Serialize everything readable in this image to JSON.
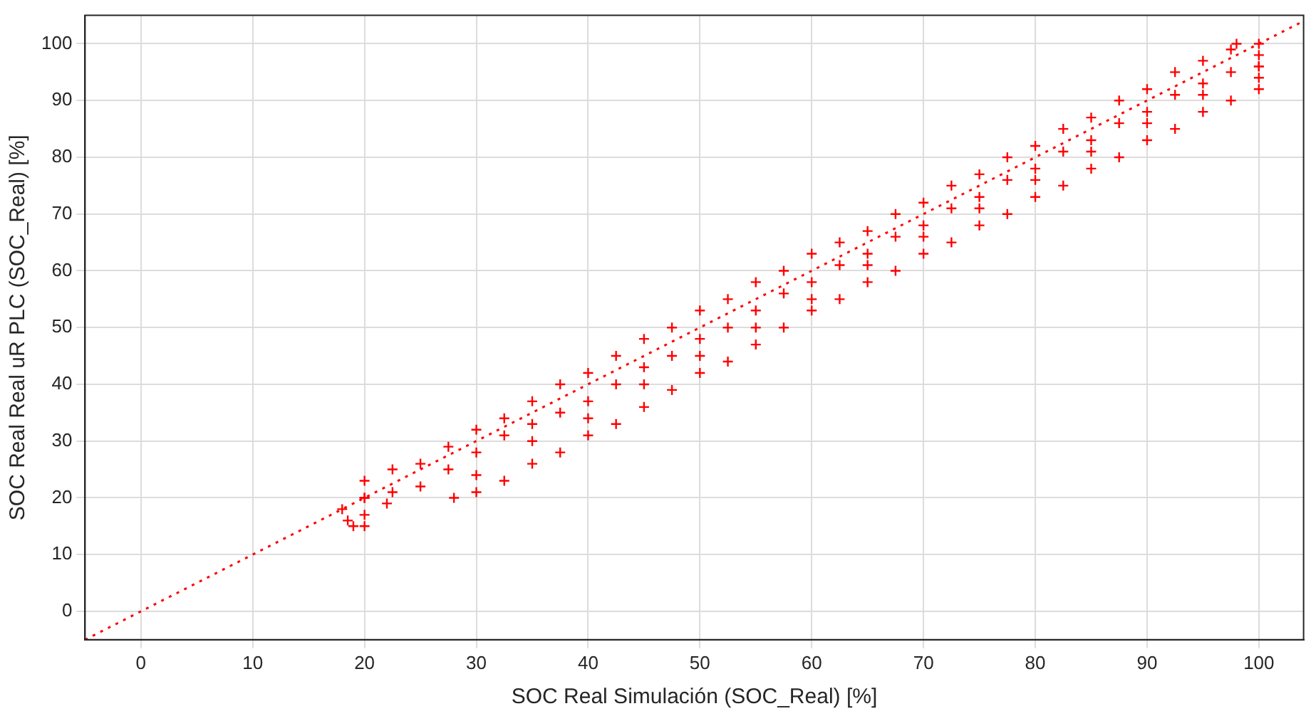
{
  "chart_data": {
    "type": "scatter",
    "xlabel": "SOC Real Simulación (SOC_Real) [%]",
    "ylabel": "SOC Real Real uR PLC (SOC_Real) [%]",
    "xlim": [
      -5,
      104
    ],
    "ylim": [
      -5,
      105
    ],
    "xticks": [
      0,
      10,
      20,
      30,
      40,
      50,
      60,
      70,
      80,
      90,
      100
    ],
    "yticks": [
      0,
      10,
      20,
      30,
      40,
      50,
      60,
      70,
      80,
      90,
      100
    ],
    "grid": true,
    "legend": false,
    "marker": "cross",
    "series": [
      {
        "color": "#ff0000",
        "x": [
          18,
          18.5,
          19,
          20,
          20,
          20,
          20,
          25,
          30,
          35,
          40,
          45,
          50,
          55,
          60,
          65,
          70,
          75,
          80,
          85,
          90,
          95,
          98,
          100,
          20,
          25,
          30,
          35,
          40,
          45,
          50,
          55,
          60,
          65,
          70,
          75,
          80,
          85,
          90,
          95,
          100,
          22,
          30,
          35,
          40,
          45,
          50,
          55,
          60,
          65,
          70,
          75,
          80,
          85,
          90,
          95,
          28,
          30,
          35,
          40,
          45,
          50,
          55,
          60,
          65,
          70,
          75,
          80,
          85,
          90,
          95,
          100,
          100,
          100,
          100,
          22.5,
          27.5,
          32.5,
          37.5,
          42.5,
          47.5,
          52.5,
          57.5,
          62.5,
          67.5,
          72.5,
          77.5,
          82.5,
          87.5,
          92.5,
          97.5,
          22.5,
          27.5,
          32.5,
          37.5,
          42.5,
          47.5,
          52.5,
          57.5,
          62.5,
          67.5,
          72.5,
          77.5,
          82.5,
          87.5,
          92.5,
          97.5,
          32.5,
          37.5,
          42.5,
          47.5,
          52.5,
          57.5,
          62.5,
          67.5,
          72.5,
          77.5,
          82.5,
          87.5,
          92.5,
          97.5
        ],
        "values": [
          18,
          16,
          15,
          15,
          17,
          20,
          23,
          26,
          32,
          37,
          42,
          48,
          53,
          58,
          63,
          67,
          72,
          77,
          82,
          87,
          92,
          97,
          100,
          100,
          20,
          22,
          28,
          33,
          37,
          43,
          48,
          53,
          58,
          63,
          68,
          73,
          78,
          83,
          88,
          93,
          96,
          19,
          24,
          30,
          34,
          40,
          45,
          50,
          55,
          61,
          66,
          71,
          76,
          81,
          86,
          91,
          20,
          21,
          26,
          31,
          36,
          42,
          47,
          53,
          58,
          63,
          68,
          73,
          78,
          83,
          88,
          92,
          94,
          96,
          98,
          25,
          29,
          34,
          40,
          45,
          50,
          55,
          60,
          65,
          70,
          75,
          80,
          85,
          90,
          95,
          99,
          21,
          25,
          31,
          35,
          40,
          45,
          50,
          56,
          61,
          66,
          71,
          76,
          81,
          86,
          91,
          95,
          23,
          28,
          33,
          39,
          44,
          50,
          55,
          60,
          65,
          70,
          75,
          80,
          85,
          90
        ]
      },
      {
        "type": "line",
        "color": "#ff0000",
        "marker": "none",
        "line_style": "dotted",
        "x": [
          -5,
          104
        ],
        "values": [
          -5,
          104
        ]
      }
    ]
  }
}
